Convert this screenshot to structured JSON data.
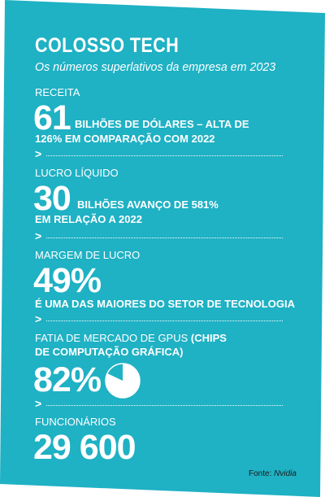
{
  "header": {
    "title": "COLOSSO TECH",
    "subtitle": "Os números superlativos da empresa em 2023"
  },
  "stats": [
    {
      "label": "RECEITA",
      "value": "61",
      "desc_line1": "BILHÕES DE DÓLARES – ALTA DE",
      "desc_line2": "126% EM COMPARAÇÃO COM 2022"
    },
    {
      "label": "LUCRO LÍQUIDO",
      "value": "30",
      "desc_line1": "BILHÕES AVANÇO DE 581%",
      "desc_line2": "EM RELAÇÃO A 2022"
    },
    {
      "label": "MARGEM DE LUCRO",
      "value": "49%",
      "desc_line1": "É UMA DAS MAIORES DO SETOR DE TECNOLOGIA"
    },
    {
      "label_part1": "FATIA DE MERCADO DE GPUS ",
      "label_part2": "(CHIPS",
      "label_line2": "DE COMPUTAÇÃO GRÁFICA)",
      "value": "82%",
      "pie_fraction": 0.82
    },
    {
      "label": "FUNCIONÁRIOS",
      "value": "29 600"
    }
  ],
  "separator_glyph": ">",
  "source": {
    "prefix": "Fonte: ",
    "name": "Nvidia"
  },
  "colors": {
    "background": "#1fb1c4",
    "text": "#ffffff",
    "source_text": "#1a1a1a"
  }
}
